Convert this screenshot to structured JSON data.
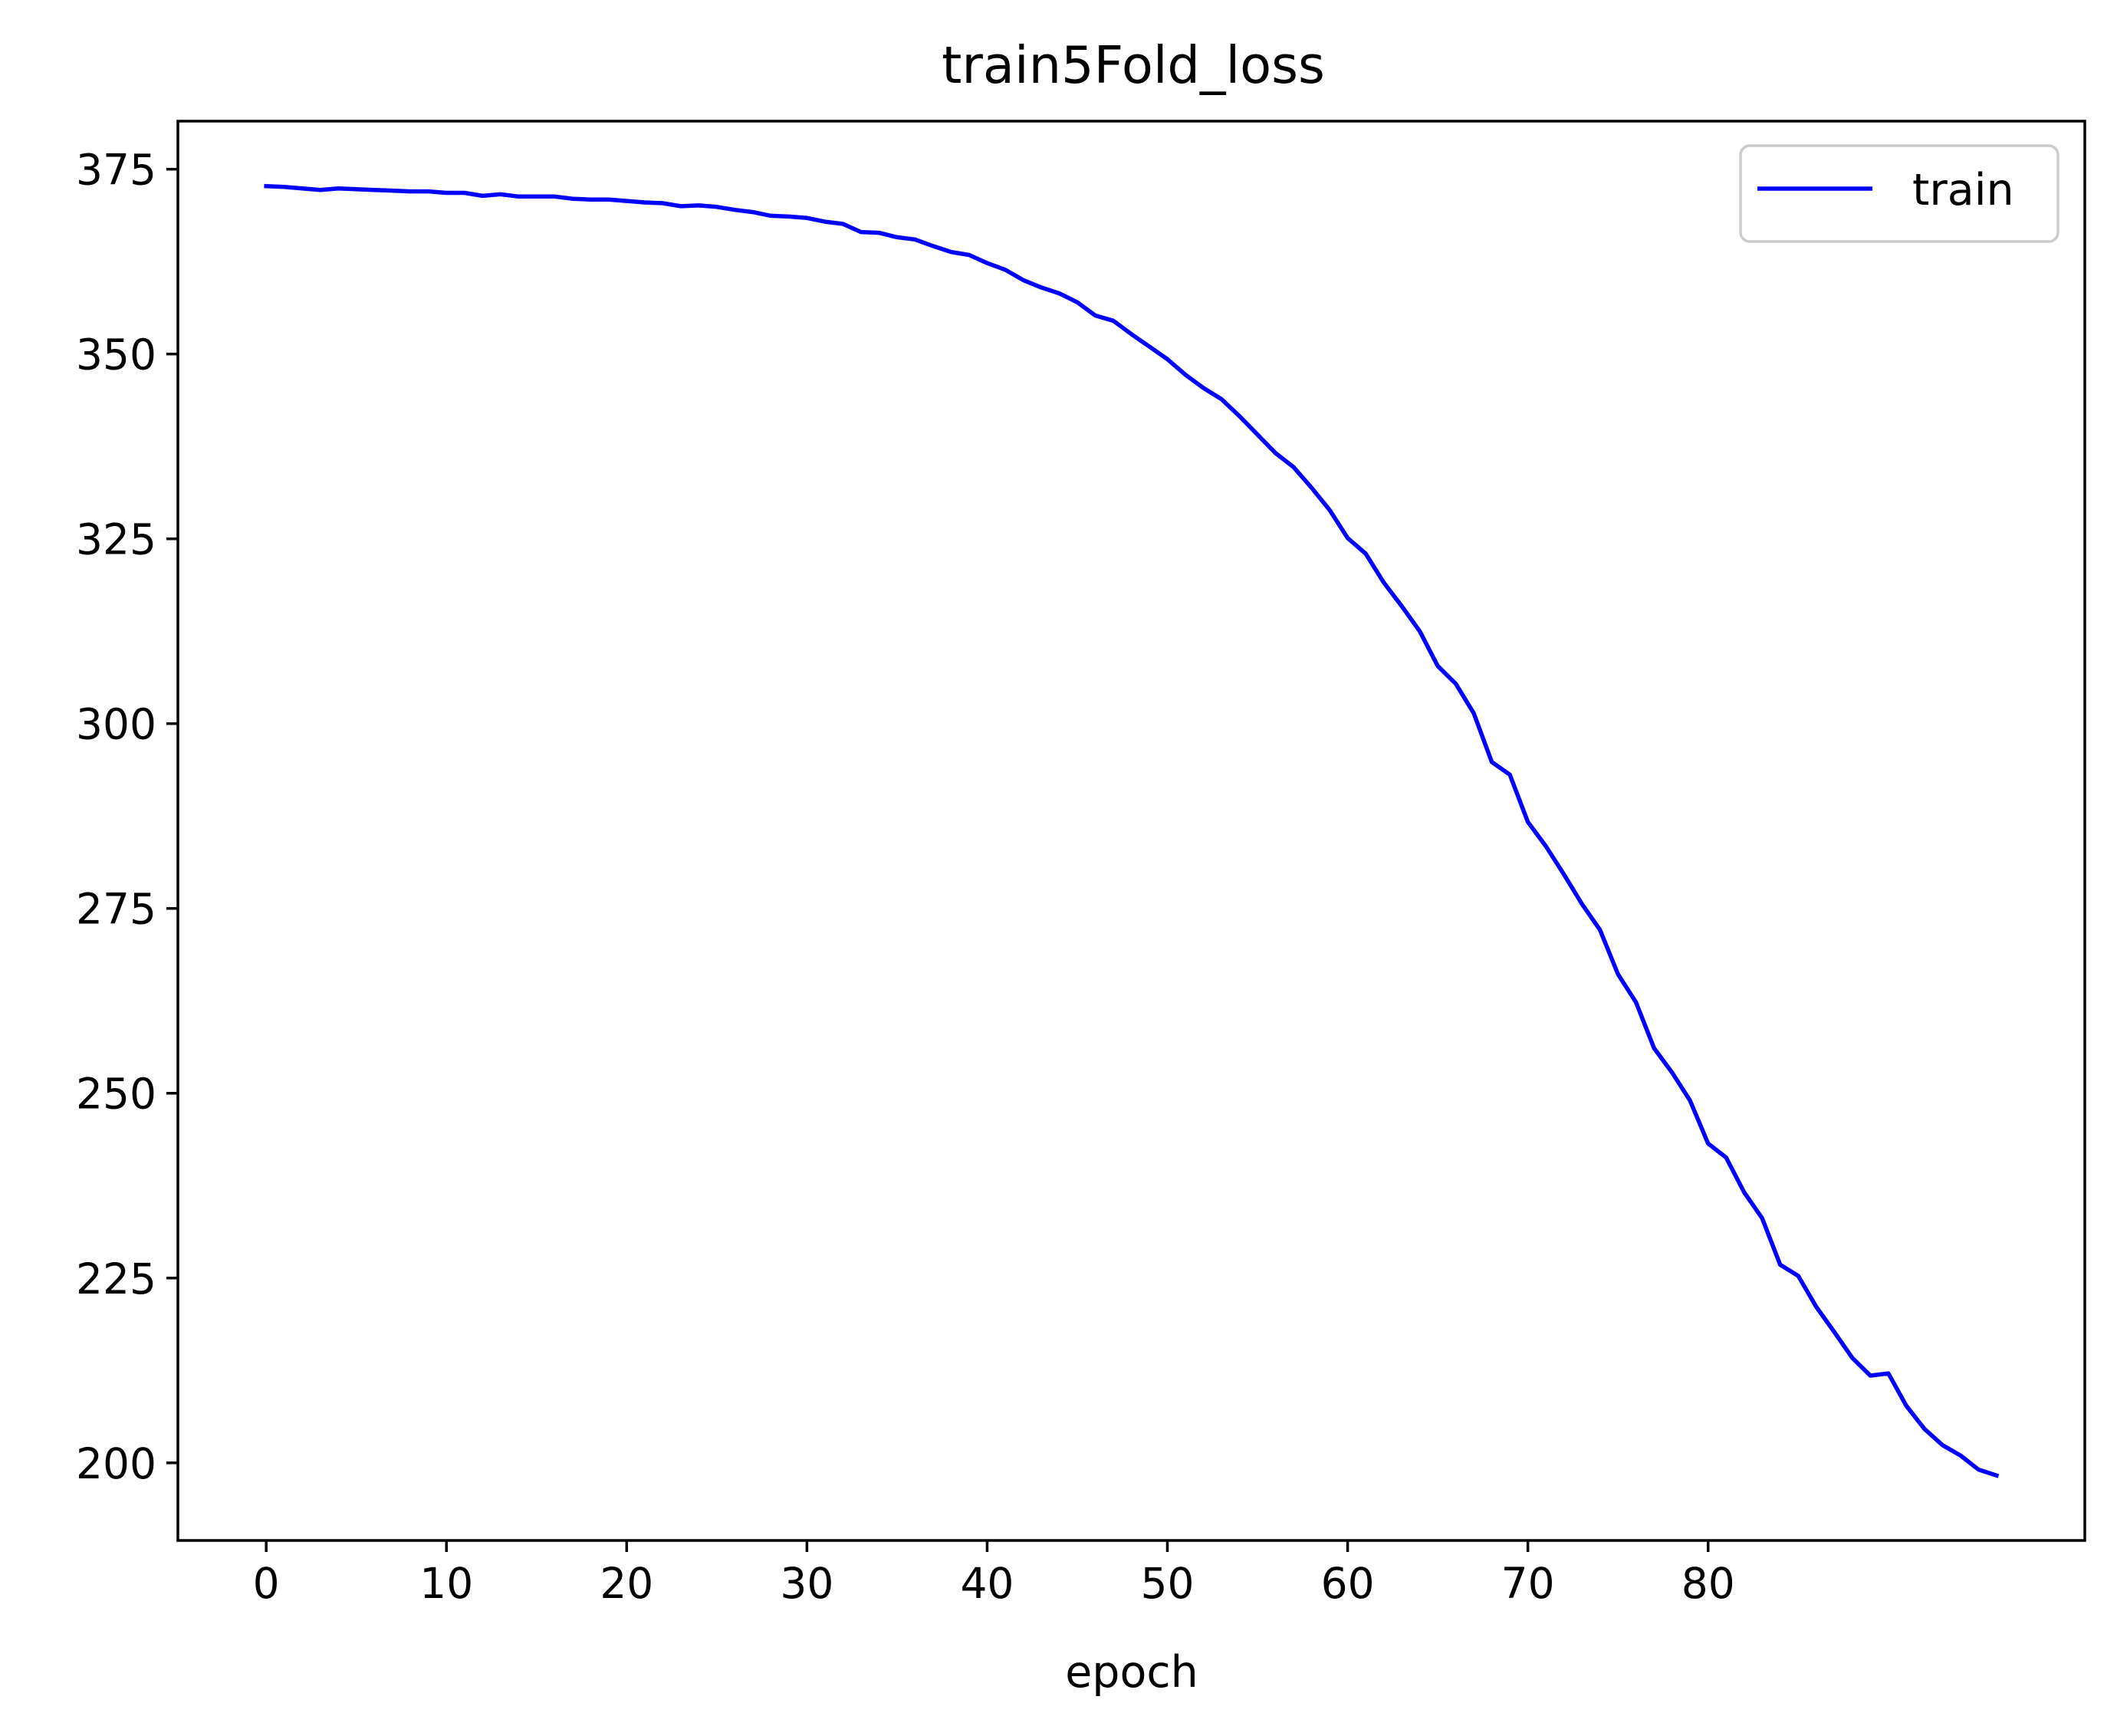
{
  "chart_data": {
    "type": "line",
    "title": "train5Fold_loss",
    "xlabel": "epoch",
    "ylabel": "",
    "xlim": [
      -4.9,
      100.9
    ],
    "ylim": [
      189.5,
      381.5
    ],
    "xticks": [
      0,
      10,
      20,
      30,
      40,
      50,
      60,
      70,
      80
    ],
    "yticks": [
      200,
      225,
      250,
      275,
      300,
      325,
      350,
      375
    ],
    "grid": false,
    "legend": {
      "position": "top-right",
      "entries": [
        "train"
      ]
    },
    "series": [
      {
        "name": "train",
        "color": "#0000ff",
        "x": [
          0,
          1,
          2,
          3,
          4,
          5,
          6,
          7,
          8,
          9,
          10,
          11,
          12,
          13,
          14,
          15,
          16,
          17,
          18,
          19,
          20,
          21,
          22,
          23,
          24,
          25,
          26,
          27,
          28,
          29,
          30,
          31,
          32,
          33,
          34,
          35,
          36,
          37,
          38,
          39,
          40,
          41,
          42,
          43,
          44,
          45,
          46,
          47,
          48,
          49,
          50,
          51,
          52,
          53,
          54,
          55,
          56,
          57,
          58,
          59,
          60,
          61,
          62,
          63,
          64,
          65,
          66,
          67,
          68,
          69,
          70,
          71,
          72,
          73,
          74,
          75,
          76,
          77,
          78,
          79,
          80,
          81,
          82,
          83,
          84,
          85,
          86,
          87,
          88,
          89,
          90,
          91,
          92,
          93,
          94,
          95,
          96
        ],
        "y": [
          372.7,
          372.6,
          372.4,
          372.2,
          372.4,
          372.3,
          372.2,
          372.1,
          372.0,
          372.0,
          371.8,
          371.8,
          371.4,
          371.6,
          371.3,
          371.3,
          371.3,
          371.0,
          370.9,
          370.9,
          370.7,
          370.5,
          370.4,
          370.0,
          370.1,
          369.9,
          369.5,
          369.2,
          368.7,
          368.6,
          368.4,
          367.9,
          367.6,
          366.5,
          366.4,
          365.8,
          365.5,
          364.6,
          363.8,
          363.4,
          362.3,
          361.4,
          360.0,
          359.0,
          358.2,
          357.0,
          355.2,
          354.5,
          352.7,
          351.0,
          349.3,
          347.2,
          345.4,
          343.9,
          341.6,
          339.1,
          336.6,
          334.7,
          331.9,
          328.9,
          325.1,
          323.0,
          319.1,
          315.9,
          312.5,
          307.8,
          305.4,
          301.4,
          294.8,
          293.1,
          286.7,
          283.4,
          279.6,
          275.6,
          272.1,
          266.1,
          262.3,
          256.1,
          252.8,
          249.0,
          243.2,
          241.3,
          236.6,
          233.1,
          226.8,
          225.3,
          221.1,
          217.7,
          214.2,
          211.8,
          212.1,
          207.7,
          204.6,
          202.4,
          201.0,
          199.1,
          198.3
        ]
      }
    ]
  }
}
